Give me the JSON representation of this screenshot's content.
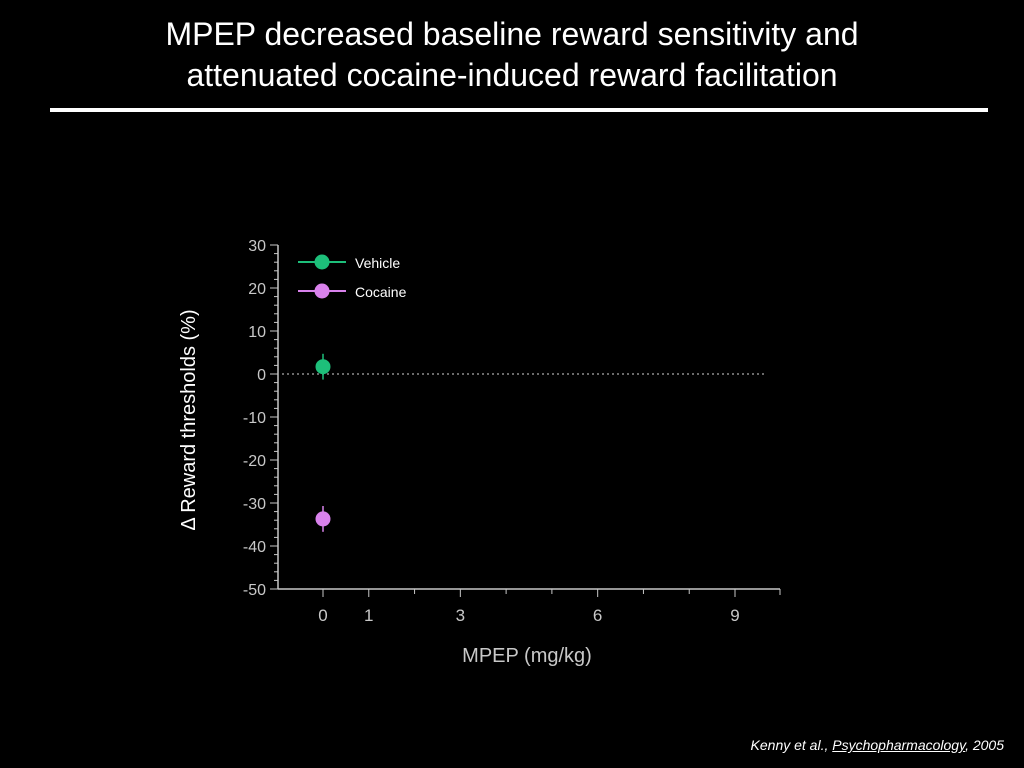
{
  "slide": {
    "title_line1": "MPEP decreased baseline reward sensitivity and",
    "title_line2": "attenuated cocaine-induced reward facilitation",
    "citation": {
      "authors": "Kenny et al., ",
      "journal": "Psychopharmacology",
      "year": ", 2005"
    }
  },
  "chart_data": {
    "type": "scatter",
    "xlabel": "MPEP (mg/kg)",
    "ylabel": "Δ Reward thresholds (%)",
    "ylim": [
      -50,
      30
    ],
    "yticks": [
      30,
      20,
      10,
      0,
      -10,
      -20,
      -30,
      -40,
      -50
    ],
    "xticks": [
      0,
      1,
      3,
      6,
      9
    ],
    "xlim": [
      -1,
      10
    ],
    "reference_line_y": 0,
    "series": [
      {
        "name": "Vehicle",
        "color": "#1dbf7a",
        "x": [
          0
        ],
        "values": [
          1.7
        ],
        "errors": [
          3
        ]
      },
      {
        "name": "Cocaine",
        "color": "#d982ec",
        "x": [
          0
        ],
        "values": [
          -33.7
        ],
        "errors": [
          3
        ]
      }
    ],
    "legend_position": "top-left"
  }
}
